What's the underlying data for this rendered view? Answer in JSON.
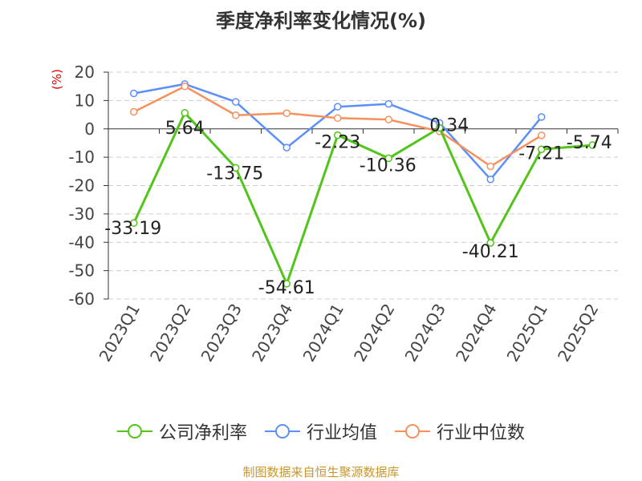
{
  "chart_data": {
    "type": "line",
    "title": "季度净利率变化情况(%)",
    "ylabel": "(%)",
    "xlabel": "",
    "categories": [
      "2023Q1",
      "2023Q2",
      "2023Q3",
      "2023Q4",
      "2024Q1",
      "2024Q2",
      "2024Q3",
      "2024Q4",
      "2025Q1",
      "2025Q2"
    ],
    "ylim": [
      -60,
      20
    ],
    "yticks": [
      20,
      10,
      0,
      -10,
      -20,
      -30,
      -40,
      -50,
      -60
    ],
    "grid": true,
    "legend_position": "bottom",
    "series": [
      {
        "name": "公司净利率",
        "color": "#52c41a",
        "values": [
          -33.19,
          5.64,
          -13.75,
          -54.61,
          -2.23,
          -10.36,
          0.34,
          -40.21,
          -7.21,
          -5.74
        ],
        "labels": [
          "-33.19",
          "5.64",
          "-13.75",
          "-54.61",
          "-2.23",
          "-10.36",
          "0.34",
          "-40.21",
          "-7.21",
          "-5.74"
        ]
      },
      {
        "name": "行业均值",
        "color": "#5b8ff9",
        "values": [
          12.5,
          15.8,
          9.5,
          -6.6,
          7.8,
          8.8,
          2.1,
          -17.8,
          4.2,
          null
        ]
      },
      {
        "name": "行业中位数",
        "color": "#f6905d",
        "values": [
          6.0,
          15.0,
          4.8,
          5.5,
          3.8,
          3.3,
          -0.9,
          -13.2,
          -2.3,
          null
        ]
      }
    ]
  },
  "legend": {
    "items": [
      "公司净利率",
      "行业均值",
      "行业中位数"
    ]
  },
  "footer": {
    "source": "制图数据来自恒生聚源数据库"
  }
}
